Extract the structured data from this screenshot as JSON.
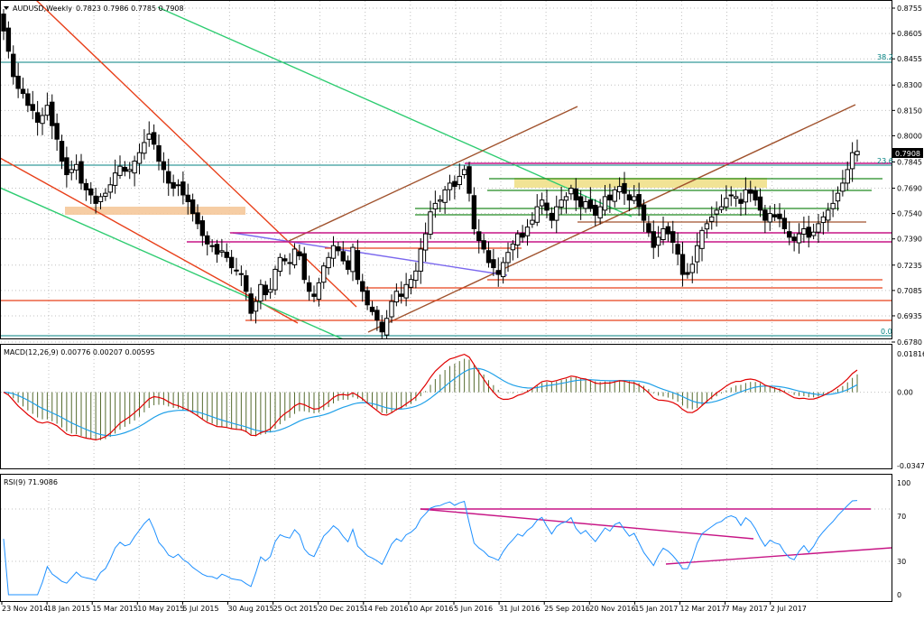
{
  "window": {
    "title": "AUDUSD,Weekly",
    "ohlc": "0.7823 0.7986 0.7785 0.7908"
  },
  "colors": {
    "background": "#ffffff",
    "grid": "#c0c0c0",
    "bull": "#ffffff",
    "bear": "#000000",
    "macd_line": "#e00000",
    "signal_line": "#1fa0e8",
    "histogram": "#556b2f",
    "rsi_line": "#1e90ff",
    "fib_line": "#008080",
    "price_tag": "#000000"
  },
  "chart_data": [
    {
      "type": "candlestick",
      "title": "AUDUSD,Weekly",
      "x_ticks": [
        "23 Nov 2014",
        "18 Jan 2015",
        "15 Mar 2015",
        "10 May 2015",
        "5 Jul 2015",
        "30 Aug 2015",
        "25 Oct 2015",
        "20 Dec 2015",
        "14 Feb 2016",
        "10 Apr 2016",
        "5 Jun 2016",
        "31 Jul 2016",
        "25 Sep 2016",
        "20 Nov 2016",
        "15 Jan 2017",
        "12 Mar 2017",
        "7 May 2017",
        "2 Jul 2017"
      ],
      "y_ticks": [
        "0.8755",
        "0.8605",
        "0.8455",
        "0.8300",
        "0.8150",
        "0.8000",
        "0.7845",
        "0.7690",
        "0.7540",
        "0.7390",
        "0.7235",
        "0.7085",
        "0.6935",
        "0.6780"
      ],
      "ylim": [
        0.678,
        0.8755
      ],
      "last_price_label": "0.7908",
      "last_price": 0.7908,
      "fib_levels": [
        {
          "label": "38.2",
          "value": 0.8455
        },
        {
          "label": "23.6",
          "value": 0.786
        },
        {
          "label": "0.0",
          "value": 0.68
        }
      ],
      "close": [
        0.862,
        0.85,
        0.835,
        0.828,
        0.825,
        0.818,
        0.815,
        0.808,
        0.812,
        0.818,
        0.806,
        0.798,
        0.785,
        0.777,
        0.78,
        0.783,
        0.772,
        0.768,
        0.765,
        0.76,
        0.764,
        0.766,
        0.771,
        0.778,
        0.782,
        0.779,
        0.78,
        0.785,
        0.79,
        0.796,
        0.801,
        0.795,
        0.785,
        0.78,
        0.772,
        0.769,
        0.771,
        0.765,
        0.761,
        0.754,
        0.748,
        0.741,
        0.736,
        0.735,
        0.73,
        0.732,
        0.728,
        0.722,
        0.72,
        0.718,
        0.708,
        0.695,
        0.702,
        0.712,
        0.706,
        0.709,
        0.721,
        0.728,
        0.726,
        0.725,
        0.733,
        0.729,
        0.715,
        0.708,
        0.705,
        0.713,
        0.723,
        0.728,
        0.735,
        0.732,
        0.726,
        0.721,
        0.734,
        0.715,
        0.708,
        0.7,
        0.696,
        0.691,
        0.684,
        0.692,
        0.702,
        0.708,
        0.705,
        0.712,
        0.715,
        0.72,
        0.733,
        0.742,
        0.755,
        0.76,
        0.762,
        0.768,
        0.772,
        0.77,
        0.776,
        0.78,
        0.766,
        0.745,
        0.738,
        0.733,
        0.725,
        0.722,
        0.718,
        0.725,
        0.731,
        0.736,
        0.742,
        0.74,
        0.746,
        0.75,
        0.758,
        0.762,
        0.756,
        0.75,
        0.758,
        0.762,
        0.764,
        0.769,
        0.762,
        0.758,
        0.761,
        0.757,
        0.753,
        0.758,
        0.764,
        0.762,
        0.768,
        0.77,
        0.766,
        0.762,
        0.764,
        0.758,
        0.75,
        0.743,
        0.734,
        0.74,
        0.745,
        0.742,
        0.737,
        0.73,
        0.718,
        0.718,
        0.724,
        0.735,
        0.744,
        0.748,
        0.752,
        0.756,
        0.758,
        0.763,
        0.765,
        0.764,
        0.76,
        0.768,
        0.766,
        0.762,
        0.756,
        0.75,
        0.754,
        0.752,
        0.751,
        0.745,
        0.74,
        0.738,
        0.742,
        0.745,
        0.74,
        0.743,
        0.748,
        0.752,
        0.756,
        0.76,
        0.766,
        0.772,
        0.78,
        0.79,
        0.7908
      ],
      "macd": {
        "label": "MACD(12,26,9) 0.00776 0.00207 0.00595",
        "ylim": [
          -0.0347,
          0.01816
        ],
        "y_ticks": [
          "0.01816",
          "0.00",
          "-0.0347"
        ]
      },
      "rsi": {
        "label": "RSI(9) 71.9086",
        "ylim": [
          0,
          100
        ],
        "y_ticks": [
          "100",
          "70",
          "30",
          "0"
        ]
      }
    }
  ]
}
